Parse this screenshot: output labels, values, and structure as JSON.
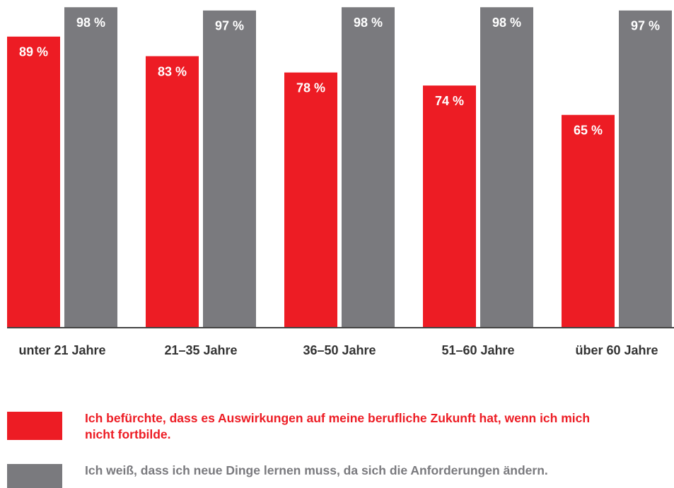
{
  "chart_data": {
    "type": "bar",
    "categories": [
      "unter 21 Jahre",
      "21–35 Jahre",
      "36–50 Jahre",
      "51–60 Jahre",
      "über 60 Jahre"
    ],
    "series": [
      {
        "name": "Ich befürchte, dass es Auswirkungen auf meine berufliche Zukunft hat, wenn ich mich nicht fortbilde.",
        "color": "#ed1c24",
        "values": [
          89,
          83,
          78,
          74,
          65
        ],
        "value_labels": [
          "89 %",
          "83 %",
          "78 %",
          "74 %",
          "65 %"
        ]
      },
      {
        "name": "Ich weiß, dass ich neue Dinge lernen muss, da sich die Anforderungen ändern.",
        "color": "#7a7a7e",
        "values": [
          98,
          97,
          98,
          98,
          97
        ],
        "value_labels": [
          "98 %",
          "97 %",
          "98 %",
          "98 %",
          "97 %"
        ]
      }
    ],
    "ylim": [
      0,
      100
    ]
  }
}
